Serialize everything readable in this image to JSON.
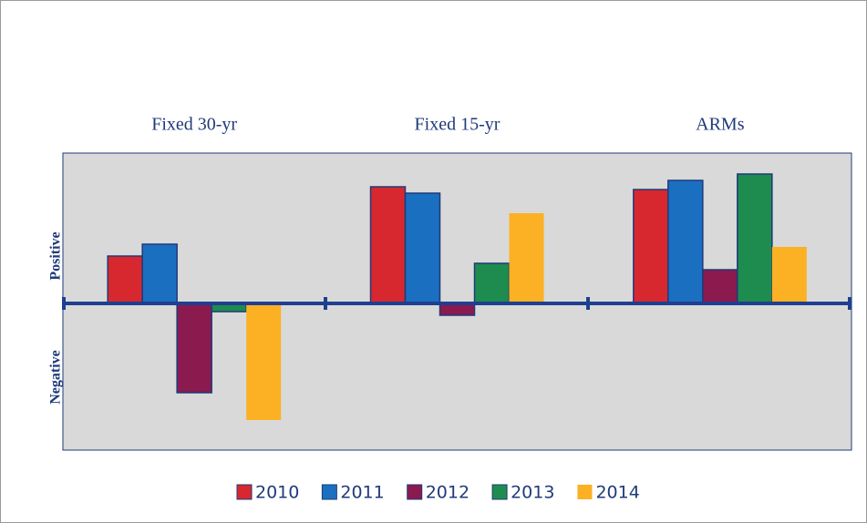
{
  "chart_data": {
    "type": "bar",
    "categories": [
      "Fixed 30-yr",
      "Fixed 15-yr",
      "ARMs"
    ],
    "y_label_positive": "Positive",
    "y_label_negative": "Negative",
    "ylim": [
      -161,
      165
    ],
    "series": [
      {
        "name": "2010",
        "color": "#d7282f",
        "values": [
          52,
          128,
          125
        ]
      },
      {
        "name": "2011",
        "color": "#1b6fc0",
        "values": [
          65,
          121,
          135
        ]
      },
      {
        "name": "2012",
        "color": "#8b1a4f",
        "values": [
          -98,
          -13,
          37
        ]
      },
      {
        "name": "2013",
        "color": "#1e8c4e",
        "values": [
          -9,
          44,
          142
        ]
      },
      {
        "name": "2014",
        "color": "#fbb123",
        "values": [
          -128,
          99,
          62
        ]
      }
    ]
  }
}
